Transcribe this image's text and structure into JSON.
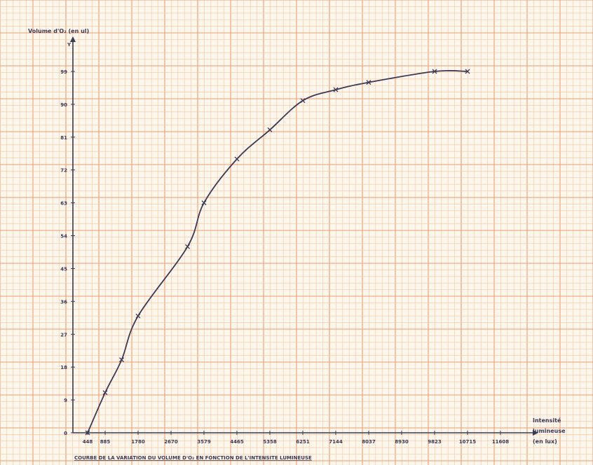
{
  "chart_data": {
    "type": "line",
    "ylabel": "Volume d'O₂ (en ul)",
    "xlabel": [
      "Intensité",
      "lumineuse",
      "(en lux)"
    ],
    "caption": "COURBE DE LA VARIATION DU VOLUME D'O₂ EN FONCTION DE L'INTENSITE LUMINEUSE",
    "y_arrow_label": "Y",
    "x_ticks": [
      "448",
      "885",
      "1780",
      "2670",
      "3579",
      "4465",
      "5358",
      "6251",
      "7144",
      "8037",
      "8930",
      "9823",
      "10715",
      "11608"
    ],
    "y_ticks": [
      "0",
      "9",
      "18",
      "27",
      "36",
      "45",
      "54",
      "63",
      "72",
      "81",
      "90",
      "99"
    ],
    "ylim": [
      0,
      99
    ],
    "grid": true,
    "series": [
      {
        "points": [
          {
            "x": 448,
            "y": 0
          },
          {
            "x": 885,
            "y": 11
          },
          {
            "x": 1333,
            "y": 20
          },
          {
            "x": 1780,
            "y": 32
          },
          {
            "x": 3125,
            "y": 51
          },
          {
            "x": 3579,
            "y": 63
          },
          {
            "x": 4465,
            "y": 75
          },
          {
            "x": 5358,
            "y": 83
          },
          {
            "x": 6251,
            "y": 91
          },
          {
            "x": 7144,
            "y": 94
          },
          {
            "x": 8037,
            "y": 96
          },
          {
            "x": 9823,
            "y": 99
          },
          {
            "x": 10715,
            "y": 99
          }
        ],
        "color": "#3a3a55"
      }
    ],
    "colors": {
      "paper": "#fdf6ec",
      "minor_grid": "#f7c6a0",
      "major_grid": "#eda073",
      "ink": "#3a3a55"
    }
  }
}
